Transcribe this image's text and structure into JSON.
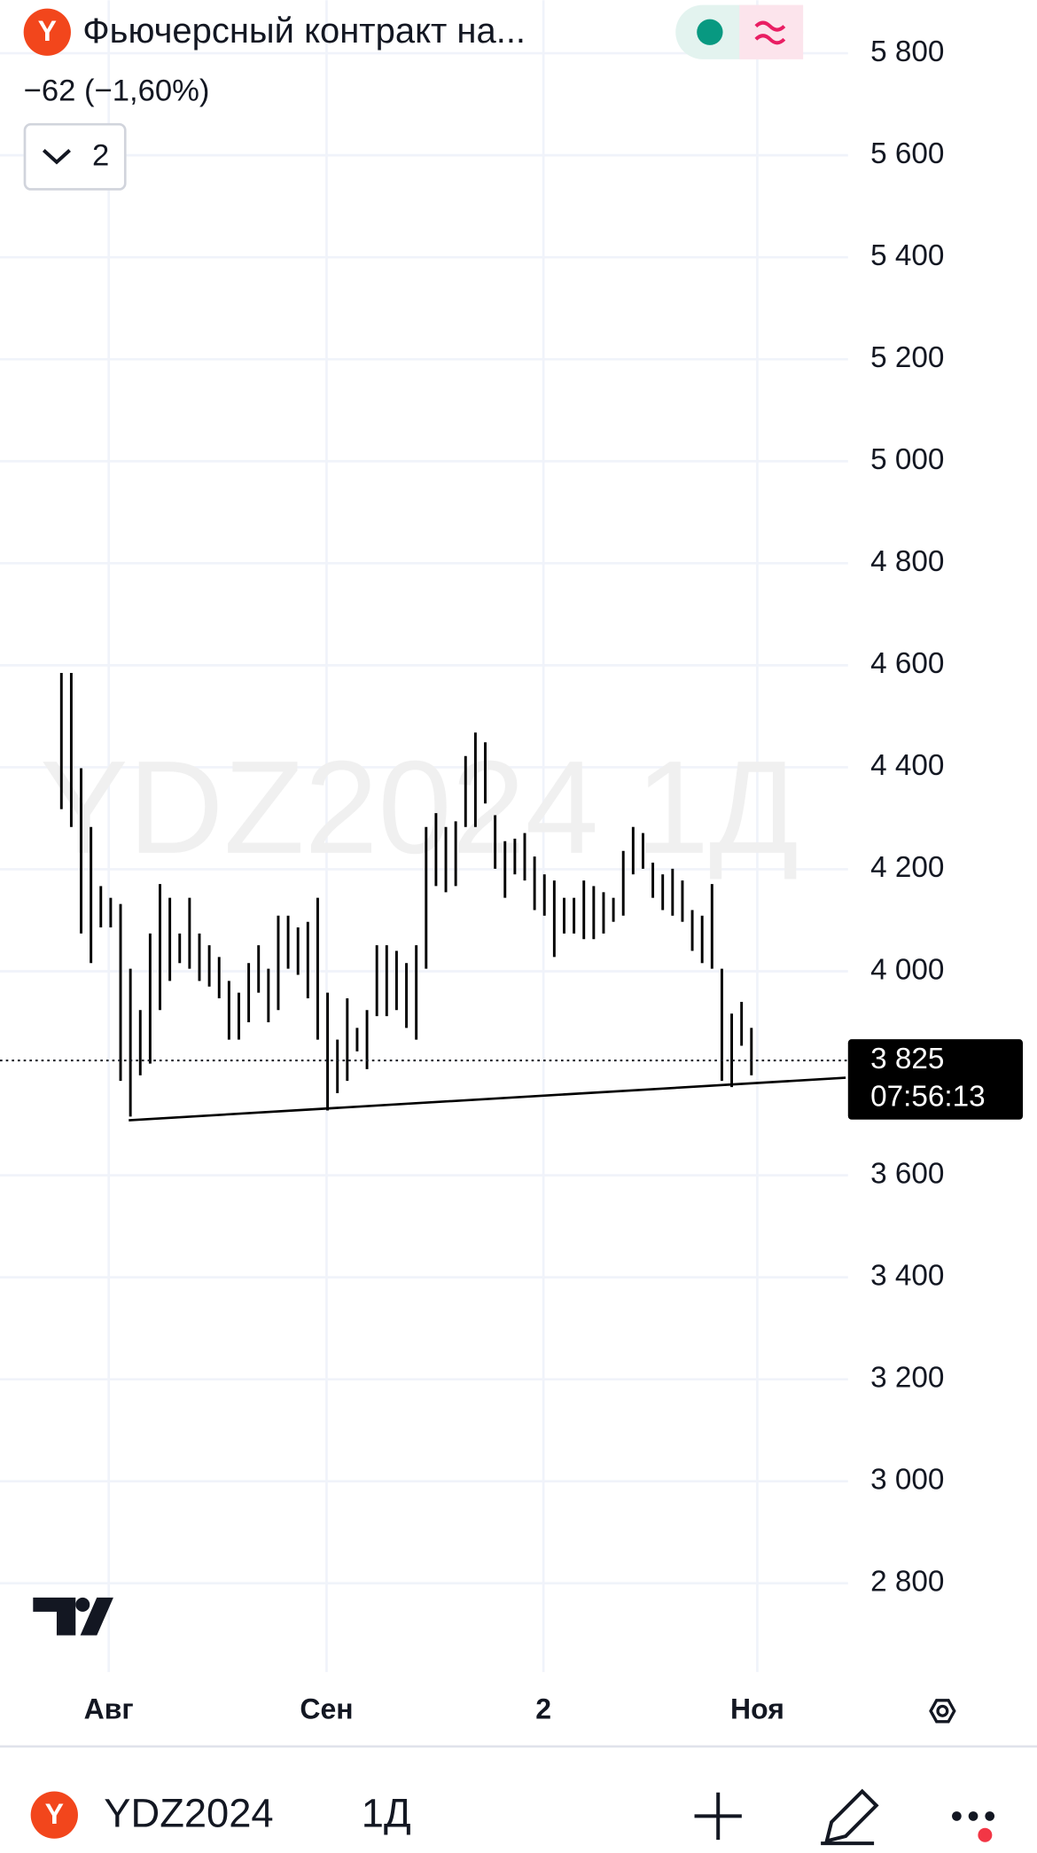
{
  "header": {
    "logo": "Y",
    "title": "Фьючерсный контракт на...",
    "change": "−62 (−1,60%)",
    "indicators_count": "2"
  },
  "chart_data": {
    "type": "ohlc",
    "watermark": "YDZ2024 1Д",
    "color": "#000000",
    "x": [
      0,
      1,
      2,
      3,
      4,
      5,
      6,
      7,
      8,
      9,
      10,
      11,
      12,
      13,
      14,
      15,
      16,
      17,
      18,
      19,
      20,
      21,
      22,
      23,
      24,
      25,
      26,
      27,
      28,
      29,
      30,
      31,
      32,
      33,
      34,
      35,
      36,
      37,
      38,
      39,
      40,
      41,
      42,
      43,
      44,
      45,
      46,
      47,
      48,
      49,
      50,
      51,
      52,
      53,
      54,
      55,
      56,
      57,
      58,
      59,
      60,
      61,
      62,
      63,
      64,
      65,
      66,
      67,
      68,
      69,
      70
    ],
    "high": [
      4585,
      4585,
      4398,
      4283,
      4167,
      4144,
      4132,
      4005,
      3924,
      4074,
      4171,
      4144,
      4074,
      4144,
      4074,
      4051,
      4028,
      3981,
      3958,
      4016,
      4051,
      4005,
      4109,
      4109,
      4086,
      4097,
      4144,
      3958,
      3866,
      3947,
      3889,
      3924,
      4051,
      4051,
      4040,
      4016,
      4051,
      4283,
      4310,
      4283,
      4294,
      4422,
      4468,
      4449,
      4306,
      4255,
      4260,
      4271,
      4225,
      4190,
      4178,
      4144,
      4144,
      4178,
      4167,
      4155,
      4144,
      4236,
      4283,
      4271,
      4213,
      4190,
      4201,
      4178,
      4120,
      4109,
      4171,
      4005,
      3917,
      3940,
      3889
    ],
    "low": [
      4318,
      4283,
      4074,
      4016,
      4086,
      4086,
      3785,
      3715,
      3796,
      3819,
      3924,
      3981,
      4016,
      4005,
      3981,
      3970,
      3947,
      3866,
      3866,
      3900,
      3958,
      3900,
      3924,
      4005,
      3993,
      3947,
      3866,
      3727,
      3761,
      3785,
      3843,
      3808,
      3912,
      3912,
      3924,
      3889,
      3866,
      4005,
      4167,
      4155,
      4167,
      4283,
      4283,
      4329,
      4201,
      4144,
      4190,
      4178,
      4120,
      4109,
      4028,
      4074,
      4074,
      4063,
      4063,
      4074,
      4097,
      4109,
      4190,
      4201,
      4144,
      4120,
      4109,
      4097,
      4040,
      4016,
      4005,
      3785,
      3773,
      3854,
      3796
    ],
    "last_price": {
      "value": 3825,
      "label": "3 825"
    },
    "countdown": "07:56:13",
    "xlim": [
      -6.23,
      79.8
    ],
    "xticks": [
      {
        "value": 4.8,
        "label": "Авг"
      },
      {
        "value": 26.9,
        "label": "Сен"
      },
      {
        "value": 48.9,
        "label": "2"
      },
      {
        "value": 70.6,
        "label": "Ноя"
      }
    ],
    "ylim": [
      2626,
      5904
    ],
    "yticks": [
      {
        "value": 2800,
        "label": "2 800"
      },
      {
        "value": 3000,
        "label": "3 000"
      },
      {
        "value": 3200,
        "label": "3 200"
      },
      {
        "value": 3400,
        "label": "3 400"
      },
      {
        "value": 3600,
        "label": "3 600"
      },
      {
        "value": 4000,
        "label": "4 000"
      },
      {
        "value": 4200,
        "label": "4 200"
      },
      {
        "value": 4400,
        "label": "4 400"
      },
      {
        "value": 4600,
        "label": "4 600"
      },
      {
        "value": 4800,
        "label": "4 800"
      },
      {
        "value": 5000,
        "label": "5 000"
      },
      {
        "value": 5200,
        "label": "5 200"
      },
      {
        "value": 5400,
        "label": "5 400"
      },
      {
        "value": 5600,
        "label": "5 600"
      },
      {
        "value": 5800,
        "label": "5 800"
      }
    ],
    "grid": true
  },
  "toolbar": {
    "logo": "Y",
    "symbol": "YDZ2024",
    "interval": "1Д"
  }
}
